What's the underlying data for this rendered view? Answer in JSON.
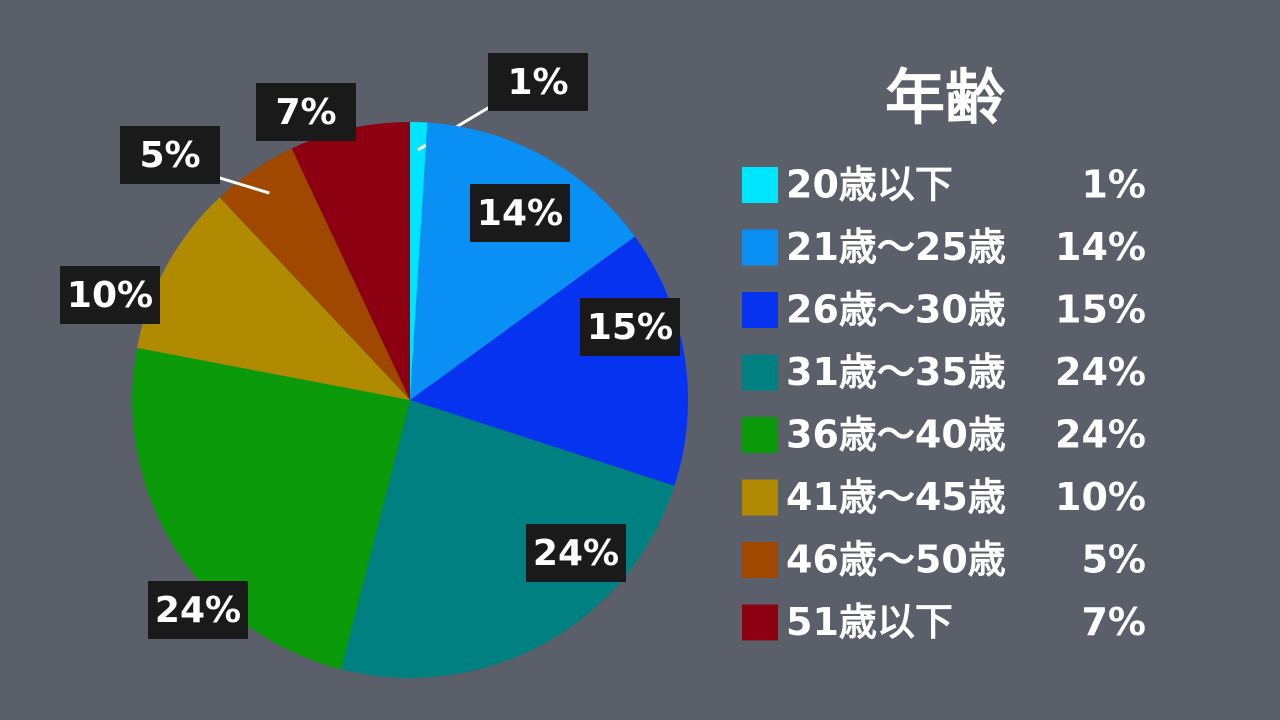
{
  "chart_data": {
    "type": "pie",
    "title": "年齢",
    "categories": [
      "20歳以下",
      "21歳～25歳",
      "26歳～30歳",
      "31歳～35歳",
      "36歳～40歳",
      "41歳～45歳",
      "46歳～50歳",
      "51歳以下"
    ],
    "values": [
      1,
      14,
      15,
      24,
      24,
      10,
      5,
      7
    ],
    "value_labels": [
      "1%",
      "14%",
      "15%",
      "24%",
      "24%",
      "10%",
      "5%",
      "7%"
    ],
    "colors": [
      "#00e5ff",
      "#0a8ff5",
      "#0533f0",
      "#008080",
      "#0a9a0a",
      "#b08a00",
      "#a04800",
      "#8c0012"
    ]
  }
}
